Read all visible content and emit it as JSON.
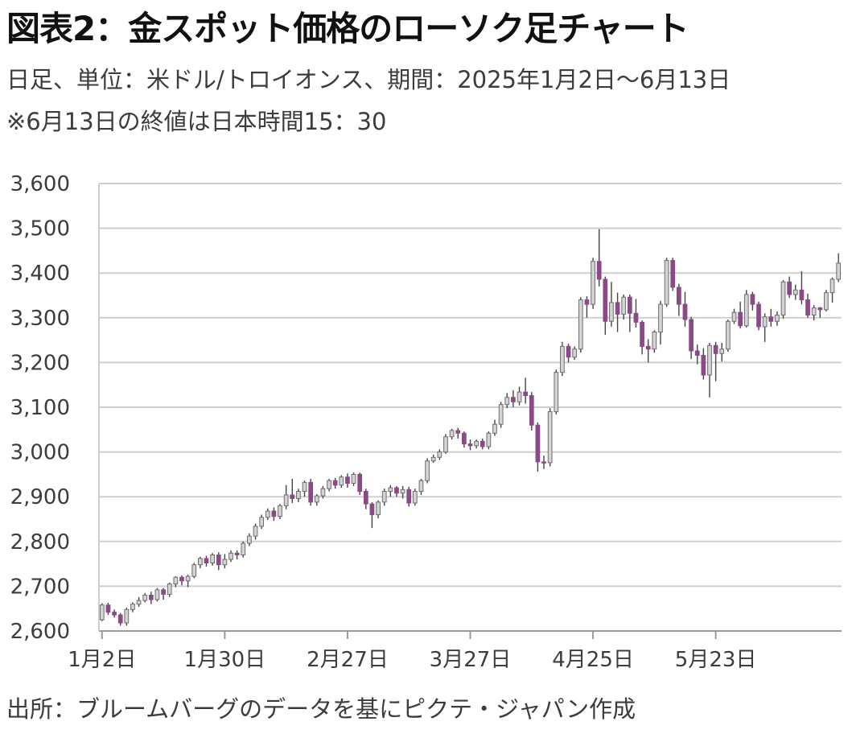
{
  "title": "図表2：金スポット価格のローソク足チャート",
  "subtitle": "日足、単位：米ドル/トロイオンス、期間：2025年1月2日～6月13日",
  "note": "※6月13日の終値は日本時間15：30",
  "source": "出所：ブルームバーグのデータを基にピクテ・ジャパン作成",
  "colors": {
    "up": "#d4d4d4",
    "down": "#8b4a87",
    "grid": "#cfcfcf",
    "axis": "#9a9a9a",
    "wick": "#444444"
  },
  "chart_data": {
    "type": "candlestick",
    "title": "図表2：金スポット価格のローソク足チャート",
    "xlabel": "",
    "ylabel": "",
    "ylim": [
      2600,
      3600
    ],
    "grid": true,
    "legend": "none",
    "y_ticks": [
      3600,
      3500,
      3400,
      3300,
      3200,
      3100,
      3000,
      2900,
      2800,
      2700,
      2600
    ],
    "y_tick_labels": [
      "3,600",
      "3,500",
      "3,400",
      "3,300",
      "3,200",
      "3,100",
      "3,000",
      "2,900",
      "2,800",
      "2,700",
      "2,600"
    ],
    "x_tick_labels": [
      "1月2日",
      "1月30日",
      "2月27日",
      "3月27日",
      "4月25日",
      "5月23日"
    ],
    "x_tick_index": [
      0,
      20,
      40,
      60,
      80,
      100
    ],
    "candles": [
      [
        2625,
        2658,
        2622,
        2662
      ],
      [
        2658,
        2642,
        2636,
        2663
      ],
      [
        2642,
        2636,
        2630,
        2648
      ],
      [
        2636,
        2618,
        2612,
        2640
      ],
      [
        2618,
        2648,
        2612,
        2652
      ],
      [
        2648,
        2660,
        2642,
        2664
      ],
      [
        2660,
        2668,
        2654,
        2676
      ],
      [
        2668,
        2680,
        2664,
        2685
      ],
      [
        2680,
        2670,
        2660,
        2688
      ],
      [
        2670,
        2692,
        2666,
        2696
      ],
      [
        2692,
        2682,
        2670,
        2696
      ],
      [
        2682,
        2705,
        2676,
        2708
      ],
      [
        2705,
        2720,
        2698,
        2722
      ],
      [
        2720,
        2712,
        2702,
        2724
      ],
      [
        2712,
        2722,
        2698,
        2726
      ],
      [
        2722,
        2748,
        2718,
        2752
      ],
      [
        2748,
        2762,
        2740,
        2766
      ],
      [
        2762,
        2752,
        2744,
        2768
      ],
      [
        2752,
        2770,
        2746,
        2774
      ],
      [
        2770,
        2748,
        2736,
        2776
      ],
      [
        2748,
        2760,
        2740,
        2772
      ],
      [
        2760,
        2774,
        2754,
        2780
      ],
      [
        2774,
        2770,
        2760,
        2780
      ],
      [
        2770,
        2796,
        2764,
        2800
      ],
      [
        2796,
        2812,
        2790,
        2818
      ],
      [
        2812,
        2834,
        2804,
        2840
      ],
      [
        2834,
        2854,
        2828,
        2860
      ],
      [
        2854,
        2868,
        2848,
        2874
      ],
      [
        2868,
        2856,
        2846,
        2876
      ],
      [
        2856,
        2880,
        2850,
        2884
      ],
      [
        2880,
        2904,
        2872,
        2926
      ],
      [
        2904,
        2896,
        2886,
        2940
      ],
      [
        2896,
        2912,
        2888,
        2918
      ],
      [
        2912,
        2932,
        2900,
        2936
      ],
      [
        2932,
        2888,
        2880,
        2940
      ],
      [
        2888,
        2902,
        2880,
        2906
      ],
      [
        2902,
        2918,
        2896,
        2924
      ],
      [
        2918,
        2936,
        2912,
        2940
      ],
      [
        2936,
        2926,
        2918,
        2942
      ],
      [
        2926,
        2944,
        2920,
        2948
      ],
      [
        2944,
        2930,
        2920,
        2952
      ],
      [
        2930,
        2950,
        2924,
        2954
      ],
      [
        2950,
        2912,
        2904,
        2954
      ],
      [
        2912,
        2884,
        2872,
        2918
      ],
      [
        2884,
        2860,
        2830,
        2888
      ],
      [
        2860,
        2888,
        2852,
        2892
      ],
      [
        2888,
        2912,
        2880,
        2918
      ],
      [
        2912,
        2920,
        2900,
        2926
      ],
      [
        2920,
        2908,
        2900,
        2924
      ],
      [
        2908,
        2916,
        2896,
        2924
      ],
      [
        2916,
        2886,
        2878,
        2922
      ],
      [
        2886,
        2912,
        2880,
        2918
      ],
      [
        2912,
        2936,
        2904,
        2940
      ],
      [
        2936,
        2980,
        2930,
        2986
      ],
      [
        2980,
        2988,
        2976,
        2994
      ],
      [
        2988,
        3000,
        2982,
        3006
      ],
      [
        3000,
        3034,
        2996,
        3040
      ],
      [
        3034,
        3048,
        3028,
        3052
      ],
      [
        3048,
        3042,
        3030,
        3054
      ],
      [
        3042,
        3018,
        3010,
        3046
      ],
      [
        3018,
        3014,
        3004,
        3028
      ],
      [
        3014,
        3024,
        3008,
        3028
      ],
      [
        3024,
        3012,
        3006,
        3030
      ],
      [
        3012,
        3042,
        3006,
        3046
      ],
      [
        3042,
        3062,
        3036,
        3072
      ],
      [
        3062,
        3106,
        3054,
        3112
      ],
      [
        3106,
        3122,
        3098,
        3132
      ],
      [
        3122,
        3112,
        3100,
        3138
      ],
      [
        3112,
        3134,
        3104,
        3146
      ],
      [
        3134,
        3126,
        3108,
        3166
      ],
      [
        3126,
        3060,
        3048,
        3134
      ],
      [
        3060,
        2978,
        2956,
        3066
      ],
      [
        2978,
        2976,
        2962,
        2992
      ],
      [
        2976,
        3090,
        2968,
        3098
      ],
      [
        3090,
        3178,
        3084,
        3184
      ],
      [
        3178,
        3236,
        3170,
        3246
      ],
      [
        3236,
        3212,
        3200,
        3242
      ],
      [
        3212,
        3230,
        3206,
        3236
      ],
      [
        3230,
        3340,
        3222,
        3346
      ],
      [
        3340,
        3330,
        3300,
        3348
      ],
      [
        3330,
        3426,
        3320,
        3434
      ],
      [
        3426,
        3386,
        3370,
        3498
      ],
      [
        3386,
        3292,
        3262,
        3392
      ],
      [
        3292,
        3334,
        3280,
        3380
      ],
      [
        3334,
        3308,
        3268,
        3356
      ],
      [
        3308,
        3346,
        3296,
        3352
      ],
      [
        3346,
        3310,
        3268,
        3352
      ],
      [
        3310,
        3290,
        3278,
        3342
      ],
      [
        3290,
        3236,
        3218,
        3294
      ],
      [
        3236,
        3230,
        3200,
        3252
      ],
      [
        3230,
        3268,
        3222,
        3272
      ],
      [
        3268,
        3330,
        3240,
        3338
      ],
      [
        3330,
        3428,
        3324,
        3434
      ],
      [
        3428,
        3368,
        3360,
        3434
      ],
      [
        3368,
        3330,
        3304,
        3376
      ],
      [
        3330,
        3296,
        3280,
        3358
      ],
      [
        3296,
        3226,
        3208,
        3302
      ],
      [
        3226,
        3216,
        3196,
        3240
      ],
      [
        3216,
        3172,
        3162,
        3232
      ],
      [
        3172,
        3238,
        3122,
        3244
      ],
      [
        3238,
        3220,
        3158,
        3246
      ],
      [
        3220,
        3230,
        3202,
        3244
      ],
      [
        3230,
        3292,
        3224,
        3296
      ],
      [
        3292,
        3312,
        3286,
        3320
      ],
      [
        3312,
        3282,
        3276,
        3336
      ],
      [
        3282,
        3352,
        3278,
        3362
      ],
      [
        3352,
        3330,
        3316,
        3358
      ],
      [
        3330,
        3280,
        3272,
        3336
      ],
      [
        3280,
        3302,
        3246,
        3310
      ],
      [
        3302,
        3292,
        3280,
        3320
      ],
      [
        3292,
        3306,
        3282,
        3314
      ],
      [
        3306,
        3380,
        3298,
        3384
      ],
      [
        3380,
        3352,
        3344,
        3392
      ],
      [
        3352,
        3362,
        3340,
        3374
      ],
      [
        3362,
        3340,
        3330,
        3404
      ],
      [
        3340,
        3306,
        3300,
        3354
      ],
      [
        3306,
        3322,
        3294,
        3328
      ],
      [
        3322,
        3318,
        3300,
        3324
      ],
      [
        3318,
        3356,
        3314,
        3362
      ],
      [
        3356,
        3386,
        3334,
        3390
      ],
      [
        3386,
        3422,
        3380,
        3444
      ]
    ]
  }
}
